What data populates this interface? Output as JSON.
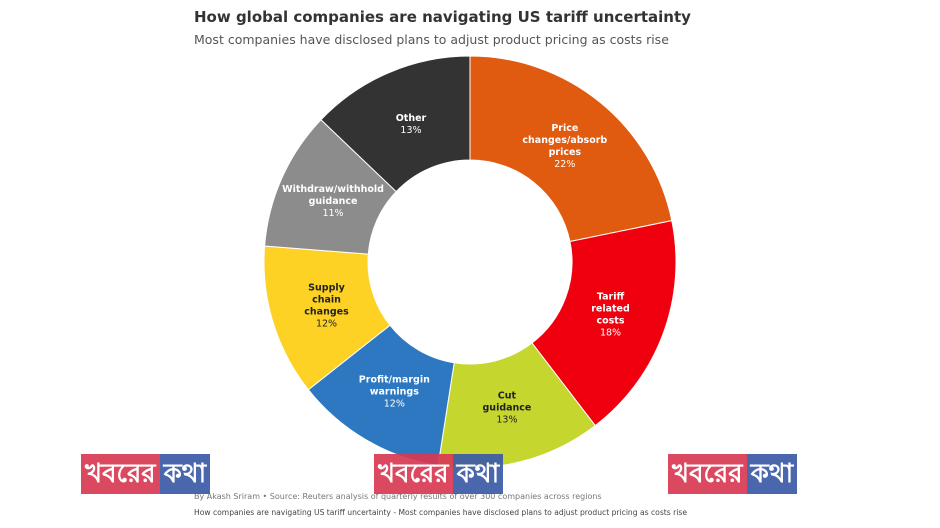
{
  "title": "How global companies are navigating US tariff uncertainty",
  "subtitle": "Most companies have disclosed plans to adjust product pricing as costs rise",
  "byline": "By Akash Sriram • Source: Reuters analysis of quarterly results of over 300 companies across regions",
  "caption": "How companies are navigating US tariff uncertainty - Most companies have disclosed plans to adjust product pricing as costs rise",
  "watermark": {
    "part1": "খবরের",
    "part2": "কথা"
  },
  "chart_data": {
    "type": "pie",
    "donut": true,
    "title": "How global companies are navigating US tariff uncertainty",
    "subtitle": "Most companies have disclosed plans to adjust product pricing as costs rise",
    "slices": [
      {
        "label": "Price changes/absorb prices",
        "value": 22,
        "value_label": "22%",
        "color": "#e05a0f"
      },
      {
        "label": "Tariff related costs",
        "value": 18,
        "value_label": "18%",
        "color": "#f0000e"
      },
      {
        "label": "Cut guidance",
        "value": 13,
        "value_label": "13%",
        "color": "#c5d62e"
      },
      {
        "label": "Profit/margin warnings",
        "value": 12,
        "value_label": "12%",
        "color": "#2d78c1"
      },
      {
        "label": "Supply chain changes",
        "value": 12,
        "value_label": "12%",
        "color": "#fdd224"
      },
      {
        "label": "Withdraw/withhold guidance",
        "value": 11,
        "value_label": "11%",
        "color": "#8c8c8c"
      },
      {
        "label": "Other",
        "value": 13,
        "value_label": "13%",
        "color": "#333333"
      }
    ]
  }
}
